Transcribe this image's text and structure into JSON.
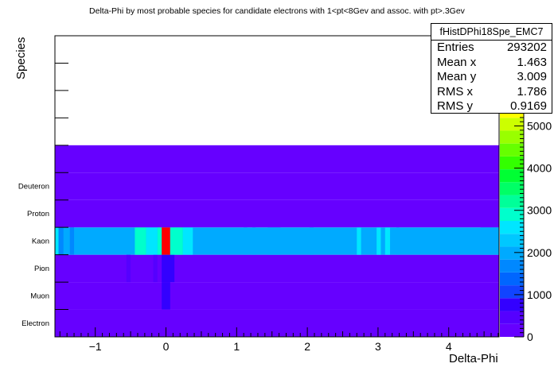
{
  "chart_data": {
    "type": "heatmap",
    "title": "Delta-Phi by most probable species for candidate electrons with 1<pt<8Gev and assoc. with pt>.3Gev",
    "xlabel": "Delta-Phi",
    "ylabel": "Species",
    "xlim": [
      -1.5708,
      4.7124
    ],
    "x_ticks": [
      -1,
      0,
      1,
      2,
      3,
      4
    ],
    "x_tick_labels": [
      "−1",
      "0",
      "1",
      "2",
      "3",
      "4"
    ],
    "y_categories": [
      "Electron",
      "Muon",
      "Pion",
      "Kaon",
      "Proton",
      "Deuteron",
      "",
      "",
      "",
      "",
      ""
    ],
    "y_labeled_categories": [
      "Electron",
      "Muon",
      "Pion",
      "Kaon",
      "Proton",
      "Deuteron"
    ],
    "z_range": [
      0,
      5500
    ],
    "z_ticks": [
      0,
      1000,
      2000,
      3000,
      4000,
      5000
    ],
    "z_tick_labels": [
      "0",
      "1000",
      "2000",
      "3000",
      "4000",
      "5000"
    ],
    "palette": [
      "#6600ff",
      "#5500ff",
      "#3300ff",
      "#1144ff",
      "#0066ff",
      "#0088ff",
      "#00aaff",
      "#00c8ff",
      "#00e6ff",
      "#00ffcc",
      "#00ff99",
      "#00ff66",
      "#00ff33",
      "#33ff00",
      "#66ff00",
      "#99ff00",
      "#ccff00",
      "#ffff00"
    ],
    "rows": [
      {
        "species": "Electron",
        "default": 120,
        "bins": []
      },
      {
        "species": "Muon",
        "default": 120,
        "bins": [
          {
            "x0": -0.06,
            "x1": 0.06,
            "value": 900
          }
        ]
      },
      {
        "species": "Pion",
        "default": 140,
        "bins": [
          {
            "x0": -0.56,
            "x1": -0.5,
            "value": 450
          },
          {
            "x0": -0.18,
            "x1": -0.12,
            "value": 500
          },
          {
            "x0": -0.12,
            "x1": -0.06,
            "value": 250
          },
          {
            "x0": -0.06,
            "x1": 0.12,
            "value": 700
          }
        ]
      },
      {
        "species": "Kaon",
        "default": 2100,
        "bins": [
          {
            "x0": -1.5708,
            "x1": -1.52,
            "value": 2700
          },
          {
            "x0": -1.52,
            "x1": -1.45,
            "value": 1750
          },
          {
            "x0": -1.36,
            "x1": -1.3,
            "value": 1750
          },
          {
            "x0": -0.44,
            "x1": -0.28,
            "value": 2800
          },
          {
            "x0": -0.28,
            "x1": -0.12,
            "value": 2450
          },
          {
            "x0": -0.12,
            "x1": -0.06,
            "value": 2800
          },
          {
            "x0": -0.06,
            "x1": 0.06,
            "value": 5400
          },
          {
            "x0": 0.06,
            "x1": 0.24,
            "value": 2800
          },
          {
            "x0": 0.24,
            "x1": 0.38,
            "value": 2600
          },
          {
            "x0": 1.1,
            "x1": 1.15,
            "value": 1850
          },
          {
            "x0": 1.22,
            "x1": 1.27,
            "value": 1850
          },
          {
            "x0": 1.44,
            "x1": 1.62,
            "value": 1850
          },
          {
            "x0": 2.03,
            "x1": 2.09,
            "value": 1850
          },
          {
            "x0": 2.7,
            "x1": 2.76,
            "value": 2600
          },
          {
            "x0": 2.98,
            "x1": 3.04,
            "value": 2600
          },
          {
            "x0": 3.1,
            "x1": 3.17,
            "value": 2600
          },
          {
            "x0": 3.26,
            "x1": 3.3,
            "value": 1850
          },
          {
            "x0": 4.45,
            "x1": 4.7124,
            "value": 1850
          }
        ]
      },
      {
        "species": "Proton",
        "default": 160,
        "bins": []
      },
      {
        "species": "Deuteron",
        "default": 160,
        "bins": []
      },
      {
        "species": "",
        "default": 160,
        "bins": []
      },
      {
        "species": "",
        "default": 0,
        "bins": []
      },
      {
        "species": "",
        "default": 0,
        "bins": []
      },
      {
        "species": "",
        "default": 0,
        "bins": []
      },
      {
        "species": "",
        "default": 0,
        "bins": []
      }
    ]
  },
  "stats": {
    "title": "fHistDPhi18Spe_EMC7",
    "rows": [
      {
        "label": "Entries",
        "value": "293202"
      },
      {
        "label": "Mean x",
        "value": "1.463"
      },
      {
        "label": "Mean y",
        "value": "3.009"
      },
      {
        "label": "RMS x",
        "value": "1.786"
      },
      {
        "label": "RMS y",
        "value": "0.9169"
      }
    ]
  }
}
